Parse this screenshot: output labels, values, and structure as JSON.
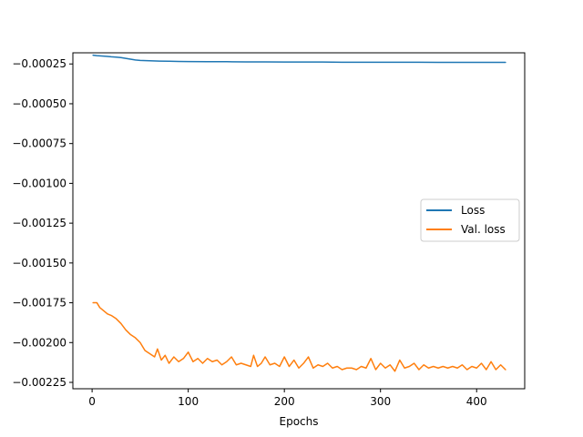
{
  "chart_data": {
    "type": "line",
    "title": "",
    "xlabel": "Epochs",
    "ylabel": "",
    "xlim": [
      -20,
      450
    ],
    "ylim": [
      -0.00229,
      -0.00018
    ],
    "xticks": [
      0,
      100,
      200,
      300,
      400
    ],
    "yticks": [
      -0.00025,
      -0.0005,
      -0.00075,
      -0.001,
      -0.00125,
      -0.0015,
      -0.00175,
      -0.002,
      -0.00225
    ],
    "ytick_labels": [
      "−0.00025",
      "−0.00050",
      "−0.00075",
      "−0.00100",
      "−0.00125",
      "−0.00150",
      "−0.00175",
      "−0.00200",
      "−0.00225"
    ],
    "grid": false,
    "legend_position": "center-right",
    "series": [
      {
        "name": "Loss",
        "color": "#1f77b4",
        "x": [
          1,
          5,
          10,
          15,
          20,
          25,
          30,
          35,
          40,
          45,
          50,
          60,
          70,
          80,
          90,
          100,
          120,
          140,
          160,
          180,
          200,
          220,
          240,
          260,
          280,
          300,
          320,
          340,
          360,
          380,
          400,
          420,
          430
        ],
        "y": [
          -0.000195,
          -0.000198,
          -0.0002,
          -0.000202,
          -0.000205,
          -0.000207,
          -0.00021,
          -0.000215,
          -0.00022,
          -0.000225,
          -0.000228,
          -0.00023,
          -0.000232,
          -0.000233,
          -0.000234,
          -0.000235,
          -0.000236,
          -0.000236,
          -0.000237,
          -0.000237,
          -0.000238,
          -0.000238,
          -0.000238,
          -0.000239,
          -0.000239,
          -0.000239,
          -0.000239,
          -0.000239,
          -0.00024,
          -0.00024,
          -0.00024,
          -0.00024,
          -0.00024
        ]
      },
      {
        "name": "Val. loss",
        "color": "#ff7f0e",
        "x": [
          1,
          5,
          8,
          12,
          16,
          20,
          25,
          30,
          35,
          40,
          45,
          50,
          55,
          60,
          65,
          68,
          72,
          76,
          80,
          85,
          90,
          95,
          100,
          105,
          110,
          115,
          120,
          125,
          130,
          135,
          140,
          145,
          150,
          155,
          160,
          165,
          168,
          172,
          176,
          180,
          185,
          190,
          195,
          200,
          205,
          210,
          215,
          220,
          225,
          230,
          235,
          240,
          245,
          250,
          255,
          260,
          265,
          270,
          275,
          280,
          285,
          290,
          295,
          300,
          305,
          310,
          315,
          320,
          325,
          330,
          335,
          340,
          345,
          350,
          355,
          360,
          365,
          370,
          375,
          380,
          385,
          390,
          395,
          400,
          405,
          410,
          415,
          420,
          425,
          430
        ],
        "y": [
          -0.00175,
          -0.00175,
          -0.00178,
          -0.0018,
          -0.00182,
          -0.00183,
          -0.00185,
          -0.00188,
          -0.00192,
          -0.00195,
          -0.00197,
          -0.002,
          -0.00205,
          -0.00207,
          -0.00209,
          -0.00204,
          -0.00211,
          -0.00208,
          -0.00213,
          -0.00209,
          -0.00212,
          -0.0021,
          -0.00206,
          -0.00212,
          -0.0021,
          -0.00213,
          -0.0021,
          -0.00212,
          -0.00211,
          -0.00214,
          -0.00212,
          -0.00209,
          -0.00214,
          -0.00213,
          -0.00214,
          -0.00215,
          -0.00208,
          -0.00215,
          -0.00213,
          -0.00209,
          -0.00214,
          -0.00213,
          -0.00215,
          -0.00209,
          -0.00215,
          -0.00211,
          -0.00216,
          -0.00213,
          -0.00209,
          -0.00216,
          -0.00214,
          -0.00215,
          -0.00213,
          -0.00216,
          -0.00215,
          -0.00217,
          -0.00216,
          -0.00216,
          -0.00217,
          -0.00215,
          -0.00216,
          -0.0021,
          -0.00217,
          -0.00213,
          -0.00216,
          -0.00214,
          -0.00218,
          -0.00211,
          -0.00216,
          -0.00215,
          -0.00213,
          -0.00217,
          -0.00214,
          -0.00216,
          -0.00215,
          -0.00216,
          -0.00215,
          -0.00216,
          -0.00215,
          -0.00216,
          -0.00214,
          -0.00217,
          -0.00215,
          -0.00216,
          -0.00213,
          -0.00217,
          -0.00212,
          -0.00217,
          -0.00214,
          -0.00217
        ]
      }
    ]
  }
}
